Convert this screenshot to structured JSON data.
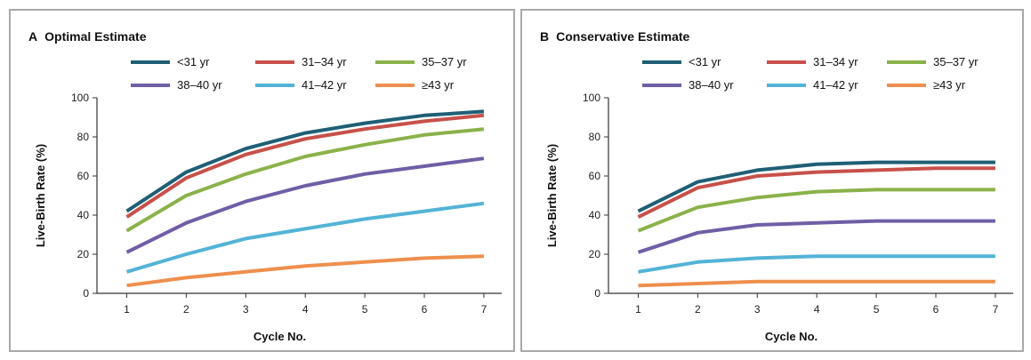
{
  "chart_data": [
    {
      "panel_letter": "A",
      "title": "Optimal Estimate",
      "type": "line",
      "xlabel": "Cycle No.",
      "ylabel": "Live-Birth Rate (%)",
      "x": [
        1,
        2,
        3,
        4,
        5,
        6,
        7
      ],
      "xlim": [
        0.5,
        7.3
      ],
      "ylim": [
        0,
        100
      ],
      "yticks": [
        0,
        20,
        40,
        60,
        80,
        100
      ],
      "grid": false,
      "legend_position": "top",
      "series": [
        {
          "name": "<31 yr",
          "color": "#1f5f75",
          "values": [
            42,
            62,
            74,
            82,
            87,
            91,
            93
          ]
        },
        {
          "name": "31–34 yr",
          "color": "#c8504a",
          "values": [
            39,
            59,
            71,
            79,
            84,
            88,
            91
          ]
        },
        {
          "name": "35–37 yr",
          "color": "#8ab24a",
          "values": [
            32,
            50,
            61,
            70,
            76,
            81,
            84
          ]
        },
        {
          "name": "38–40 yr",
          "color": "#6f5ea6",
          "values": [
            21,
            36,
            47,
            55,
            61,
            65,
            69
          ]
        },
        {
          "name": "41–42 yr",
          "color": "#53b3d6",
          "values": [
            11,
            20,
            28,
            33,
            38,
            42,
            46
          ]
        },
        {
          "name": "≥43 yr",
          "color": "#ee8f4e",
          "values": [
            4,
            8,
            11,
            14,
            16,
            18,
            19
          ]
        }
      ]
    },
    {
      "panel_letter": "B",
      "title": "Conservative Estimate",
      "type": "line",
      "xlabel": "Cycle No.",
      "ylabel": "Live-Birth Rate (%)",
      "x": [
        1,
        2,
        3,
        4,
        5,
        6,
        7
      ],
      "xlim": [
        0.5,
        7.3
      ],
      "ylim": [
        0,
        100
      ],
      "yticks": [
        0,
        20,
        40,
        60,
        80,
        100
      ],
      "grid": false,
      "legend_position": "top",
      "series": [
        {
          "name": "<31 yr",
          "color": "#1f5f75",
          "values": [
            42,
            57,
            63,
            66,
            67,
            67,
            67
          ]
        },
        {
          "name": "31–34 yr",
          "color": "#c8504a",
          "values": [
            39,
            54,
            60,
            62,
            63,
            64,
            64
          ]
        },
        {
          "name": "35–37 yr",
          "color": "#8ab24a",
          "values": [
            32,
            44,
            49,
            52,
            53,
            53,
            53
          ]
        },
        {
          "name": "38–40 yr",
          "color": "#6f5ea6",
          "values": [
            21,
            31,
            35,
            36,
            37,
            37,
            37
          ]
        },
        {
          "name": "41–42 yr",
          "color": "#53b3d6",
          "values": [
            11,
            16,
            18,
            19,
            19,
            19,
            19
          ]
        },
        {
          "name": "≥43 yr",
          "color": "#ee8f4e",
          "values": [
            4,
            5,
            6,
            6,
            6,
            6,
            6
          ]
        }
      ]
    }
  ]
}
